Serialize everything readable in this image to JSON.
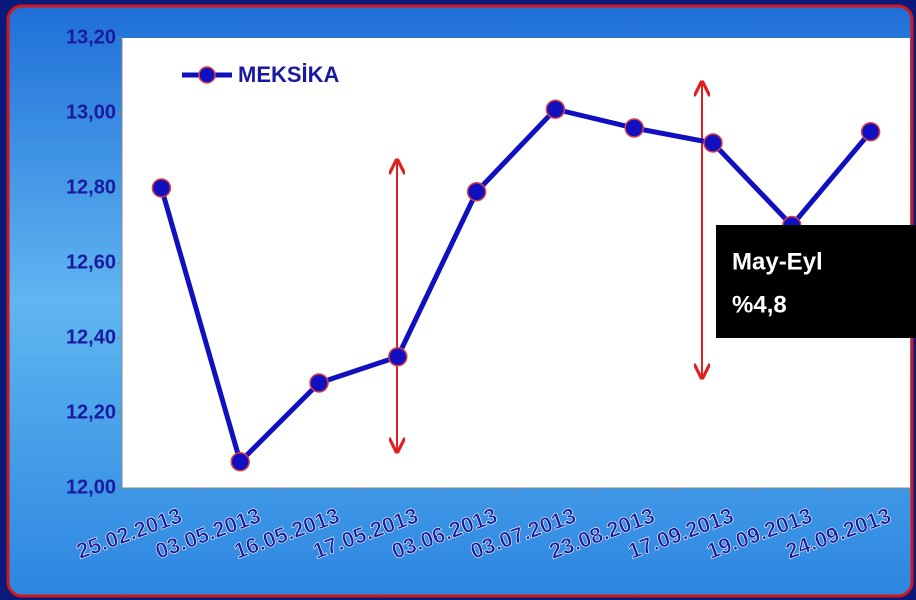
{
  "chart_data": {
    "type": "line",
    "categories": [
      "25.02.2013",
      "03.05.2013",
      "16.05.2013",
      "17.05.2013",
      "03.06.2013",
      "03.07.2013",
      "23.08.2013",
      "17.09.2013",
      "19.09.2013",
      "24.09.2013"
    ],
    "series": [
      {
        "name": "MEKSİKA",
        "color": "#1010c0",
        "values": [
          12.8,
          12.07,
          12.28,
          12.35,
          12.79,
          13.01,
          12.96,
          12.92,
          12.7,
          12.95
        ]
      }
    ],
    "ylim": [
      12.0,
      13.2
    ],
    "yticks": [
      {
        "value": 12.0,
        "label": "12,00"
      },
      {
        "value": 12.2,
        "label": "12,20"
      },
      {
        "value": 12.4,
        "label": "12,40"
      },
      {
        "value": 12.6,
        "label": "12,60"
      },
      {
        "value": 12.8,
        "label": "12,80"
      },
      {
        "value": 13.0,
        "label": "13,00"
      },
      {
        "value": 13.2,
        "label": "13,20"
      }
    ],
    "grid": false,
    "legend": "upper left",
    "annotations": [
      "May-Eyl",
      "%4,8"
    ]
  }
}
